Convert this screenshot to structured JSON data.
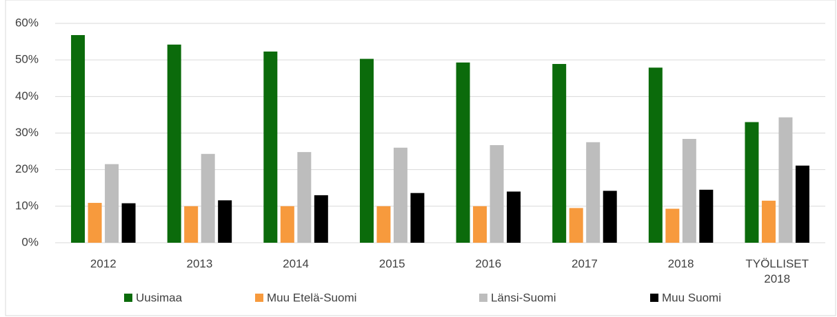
{
  "chart_data": {
    "type": "bar",
    "categories": [
      "2012",
      "2013",
      "2014",
      "2015",
      "2016",
      "2017",
      "2018",
      "TYÖLLISET 2018"
    ],
    "series": [
      {
        "name": "Uusimaa",
        "color": "#0b6b0b",
        "values": [
          56.8,
          54.2,
          52.3,
          50.3,
          49.3,
          48.9,
          47.9,
          33.0
        ]
      },
      {
        "name": "Muu Etelä-Suomi",
        "color": "#f79a3d",
        "values": [
          10.9,
          10.0,
          10.0,
          10.0,
          10.0,
          9.5,
          9.3,
          11.5
        ]
      },
      {
        "name": "Länsi-Suomi",
        "color": "#bdbdbd",
        "values": [
          21.5,
          24.3,
          24.8,
          26.0,
          26.7,
          27.5,
          28.4,
          34.3
        ]
      },
      {
        "name": "Muu Suomi",
        "color": "#000000",
        "values": [
          10.8,
          11.6,
          13.0,
          13.6,
          14.0,
          14.2,
          14.5,
          21.1
        ]
      }
    ],
    "ylim": [
      0,
      60
    ],
    "yticks": [
      {
        "value": 0,
        "label": "0%"
      },
      {
        "value": 10,
        "label": "10%"
      },
      {
        "value": 20,
        "label": "20%"
      },
      {
        "value": 30,
        "label": "30%"
      },
      {
        "value": 40,
        "label": "40%"
      },
      {
        "value": 50,
        "label": "50%"
      },
      {
        "value": 60,
        "label": "60%"
      }
    ],
    "grid": true,
    "legend": "bottom"
  }
}
